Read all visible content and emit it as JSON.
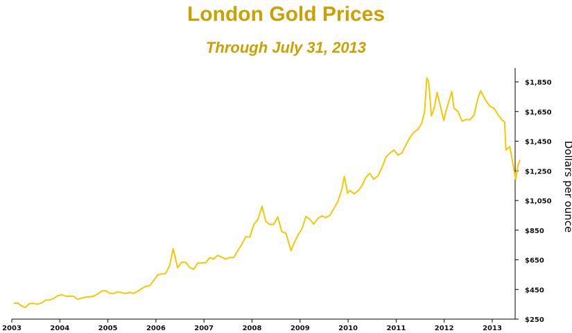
{
  "chart_data": {
    "type": "line",
    "title": "London Gold Prices",
    "subtitle": "Through July 31, 2013",
    "ylabel": "Dollars per ounce",
    "xlabel": "",
    "ylim": [
      250,
      1950
    ],
    "xlim": [
      "2003-01-01",
      "2013-08-05"
    ],
    "yticks": [
      "$250",
      "$450",
      "$650",
      "$850",
      "$1,050",
      "$1,250",
      "$1,450",
      "$1,650",
      "$1,850"
    ],
    "ytick_values": [
      250,
      450,
      650,
      850,
      1050,
      1250,
      1450,
      1650,
      1850
    ],
    "xticks": [
      "2003",
      "2004",
      "2005",
      "2006",
      "2007",
      "2008",
      "2009",
      "2010",
      "2011",
      "2012",
      "2013"
    ],
    "y_axis_side": "right",
    "grid": false,
    "line_color": "#F5C800",
    "series": [
      {
        "x": [
          "2003-01-15",
          "2003-02-15",
          "2003-03-15",
          "2003-04-15",
          "2003-05-15",
          "2003-06-15",
          "2003-07-15",
          "2003-08-15",
          "2003-09-15",
          "2003-10-15",
          "2003-11-15",
          "2003-12-15",
          "2004-01-15",
          "2004-02-15",
          "2004-03-15",
          "2004-04-15",
          "2004-05-15",
          "2004-06-15",
          "2004-07-15",
          "2004-08-15",
          "2004-09-15",
          "2004-10-15",
          "2004-11-15",
          "2004-12-15",
          "2005-01-15",
          "2005-02-15",
          "2005-03-15",
          "2005-04-15",
          "2005-05-15",
          "2005-06-15",
          "2005-07-15",
          "2005-08-15",
          "2005-09-15",
          "2005-10-15",
          "2005-11-15",
          "2005-12-15",
          "2006-01-15",
          "2006-02-15",
          "2006-03-15",
          "2006-04-15",
          "2006-05-12",
          "2006-06-15",
          "2006-07-15",
          "2006-08-15",
          "2006-09-15",
          "2006-10-15",
          "2006-11-15",
          "2006-12-15",
          "2007-01-15",
          "2007-02-15",
          "2007-03-15",
          "2007-04-15",
          "2007-05-15",
          "2007-06-15",
          "2007-07-15",
          "2007-08-15",
          "2007-09-15",
          "2007-10-15",
          "2007-11-15",
          "2007-12-15",
          "2008-01-15",
          "2008-02-15",
          "2008-03-17",
          "2008-04-15",
          "2008-05-15",
          "2008-06-15",
          "2008-07-15",
          "2008-08-15",
          "2008-09-15",
          "2008-10-24",
          "2008-11-15",
          "2008-12-15",
          "2009-01-15",
          "2009-02-15",
          "2009-03-15",
          "2009-04-15",
          "2009-05-15",
          "2009-06-15",
          "2009-07-15",
          "2009-08-15",
          "2009-09-15",
          "2009-10-15",
          "2009-11-15",
          "2009-12-03",
          "2009-12-28",
          "2010-01-15",
          "2010-02-15",
          "2010-03-15",
          "2010-04-15",
          "2010-05-15",
          "2010-06-15",
          "2010-07-15",
          "2010-08-15",
          "2010-09-15",
          "2010-10-15",
          "2010-11-15",
          "2010-12-15",
          "2011-01-15",
          "2011-02-15",
          "2011-03-15",
          "2011-04-15",
          "2011-05-15",
          "2011-06-15",
          "2011-07-15",
          "2011-08-05",
          "2011-08-22",
          "2011-09-05",
          "2011-09-26",
          "2011-10-15",
          "2011-11-08",
          "2011-12-29",
          "2012-01-15",
          "2012-02-28",
          "2012-03-15",
          "2012-04-15",
          "2012-05-15",
          "2012-06-15",
          "2012-07-15",
          "2012-08-15",
          "2012-09-15",
          "2012-10-05",
          "2012-11-15",
          "2012-12-15",
          "2013-01-15",
          "2013-02-15",
          "2013-03-15",
          "2013-04-05",
          "2013-04-15",
          "2013-05-15",
          "2013-06-28",
          "2013-07-15",
          "2013-07-31"
        ],
        "y": [
          356,
          359,
          340,
          328,
          355,
          356,
          351,
          359,
          378,
          379,
          389,
          407,
          414,
          405,
          406,
          404,
          383,
          392,
          398,
          400,
          405,
          420,
          439,
          442,
          424,
          423,
          434,
          429,
          422,
          430,
          424,
          437,
          456,
          470,
          476,
          510,
          549,
          555,
          557,
          610,
          725,
          596,
          633,
          632,
          598,
          586,
          628,
          629,
          631,
          665,
          655,
          680,
          668,
          655,
          665,
          665,
          712,
          754,
          806,
          803,
          889,
          922,
          1011,
          909,
          888,
          889,
          939,
          839,
          829,
          712,
          760,
          816,
          858,
          943,
          924,
          890,
          928,
          946,
          934,
          949,
          996,
          1043,
          1127,
          1213,
          1100,
          1118,
          1095,
          1113,
          1148,
          1205,
          1233,
          1193,
          1215,
          1271,
          1342,
          1370,
          1391,
          1356,
          1372,
          1424,
          1473,
          1510,
          1529,
          1572,
          1650,
          1877,
          1850,
          1620,
          1665,
          1780,
          1590,
          1656,
          1785,
          1673,
          1650,
          1585,
          1596,
          1594,
          1626,
          1744,
          1790,
          1721,
          1684,
          1671,
          1627,
          1593,
          1580,
          1390,
          1414,
          1192,
          1286,
          1323
        ]
      }
    ]
  }
}
